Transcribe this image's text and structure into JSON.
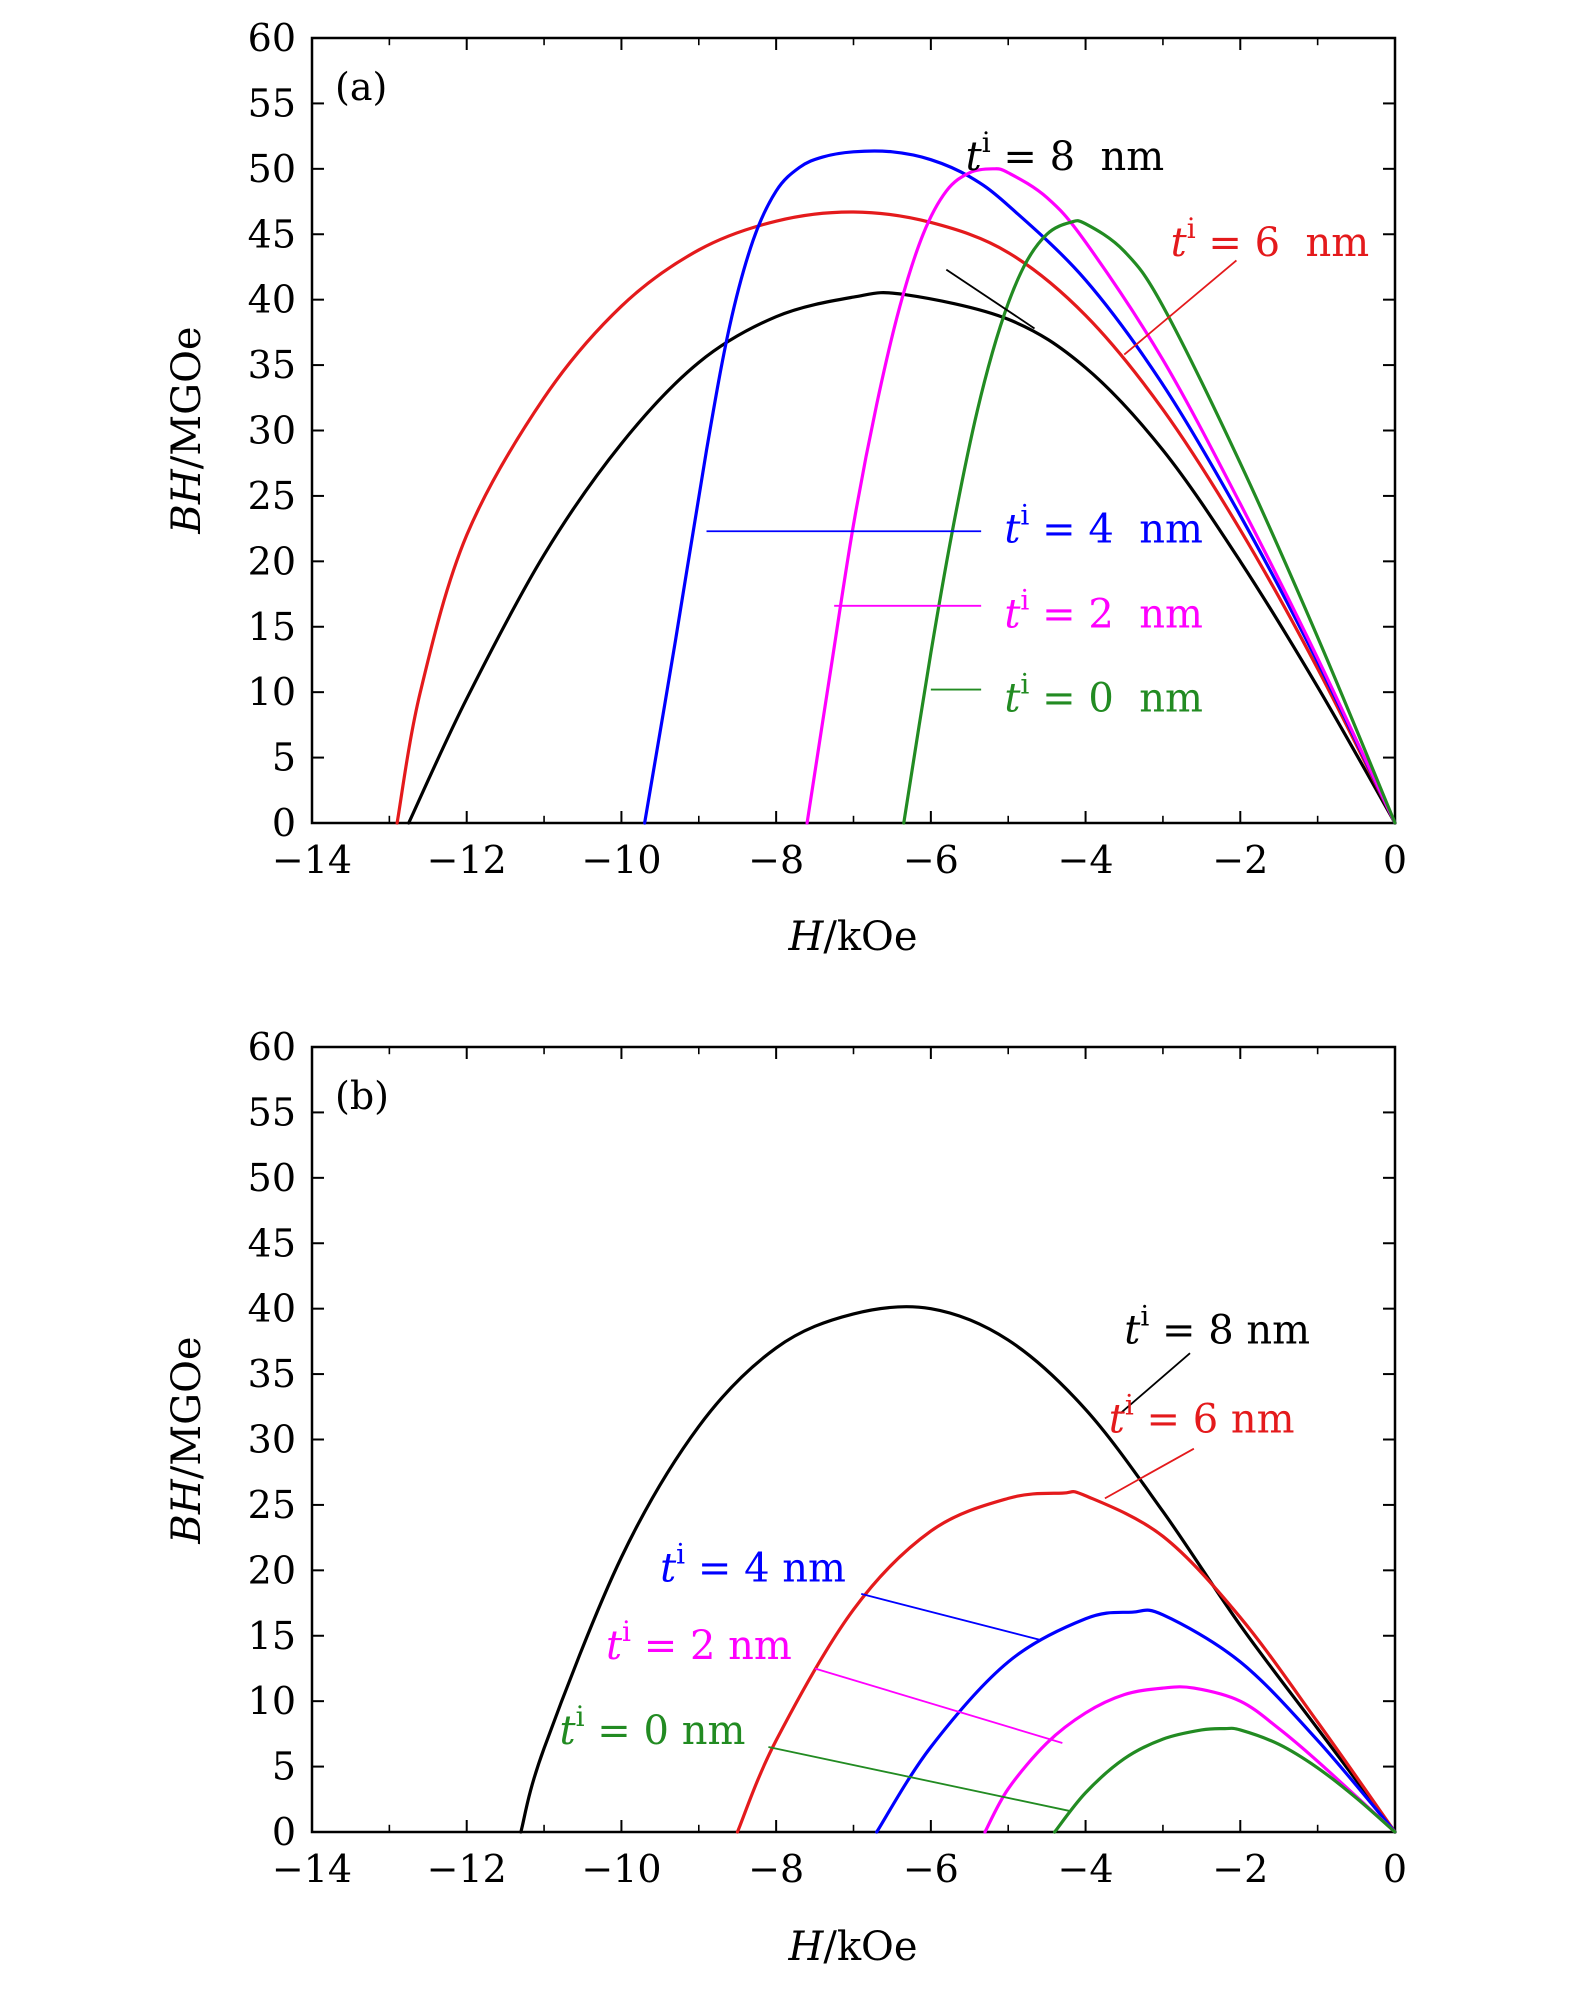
{
  "chart_data": [
    {
      "type": "line",
      "panel_label": "(a)",
      "xlabel": {
        "var": "H",
        "unit": "/kOe"
      },
      "ylabel": {
        "var": "BH",
        "unit": "/MGOe"
      },
      "xlim": [
        -14,
        0
      ],
      "ylim": [
        0,
        60
      ],
      "xticks": [
        -14,
        -12,
        -10,
        -8,
        -6,
        -4,
        -2,
        0
      ],
      "xtick_labels": [
        "−14",
        "−12",
        "−10",
        "−8",
        "−6",
        "−4",
        "−2",
        "0"
      ],
      "yticks": [
        0,
        5,
        10,
        15,
        20,
        25,
        30,
        35,
        40,
        45,
        50,
        55,
        60
      ],
      "ytick_labels": [
        "0",
        "5",
        "10",
        "15",
        "20",
        "25",
        "30",
        "35",
        "40",
        "45",
        "50",
        "55",
        "60"
      ],
      "grid": false,
      "series": [
        {
          "name": "t^i = 8 nm",
          "label_var": "t",
          "label_sup": "i",
          "label_rest": " = 8  nm",
          "color": "#000000",
          "x": [
            -12.75,
            -12.0,
            -11.0,
            -10.0,
            -9.0,
            -8.0,
            -7.0,
            -6.35,
            -5.0,
            -4.0,
            -3.0,
            -2.0,
            -1.0,
            0.0
          ],
          "y": [
            0,
            9.5,
            20.5,
            29.0,
            35.2,
            38.7,
            40.2,
            40.4,
            38.5,
            34.8,
            28.5,
            20.0,
            10.4,
            0
          ],
          "label_pos": [
            -5.55,
            51
          ],
          "pointer": [
            [
              -5.8,
              42.3
            ],
            [
              -4.66,
              37.8
            ]
          ]
        },
        {
          "name": "t^i = 6 nm",
          "label_var": "t",
          "label_sup": "i",
          "label_rest": " = 6  nm",
          "color": "#e41a1c",
          "x": [
            -12.9,
            -12.6,
            -12.0,
            -11.0,
            -10.0,
            -9.0,
            -8.0,
            -7.0,
            -6.0,
            -5.0,
            -4.0,
            -3.0,
            -2.0,
            -1.0,
            0.0
          ],
          "y": [
            0,
            10.0,
            22.0,
            32.5,
            39.5,
            43.8,
            46.0,
            46.7,
            45.9,
            43.6,
            38.8,
            31.6,
            22.4,
            11.8,
            0
          ],
          "label_pos": [
            -2.9,
            44.4
          ],
          "pointer": [
            [
              -3.5,
              35.8
            ],
            [
              -2.05,
              43.0
            ]
          ]
        },
        {
          "name": "t^i = 4 nm",
          "label_var": "t",
          "label_sup": "i",
          "label_rest": " = 4  nm",
          "color": "#0000ff",
          "x": [
            -9.7,
            -9.3,
            -8.9,
            -8.6,
            -8.3,
            -8.0,
            -7.7,
            -7.4,
            -7.0,
            -6.5,
            -6.0,
            -5.5,
            -5.0,
            -4.0,
            -3.0,
            -2.0,
            -1.0,
            0.0
          ],
          "y": [
            0,
            14.0,
            28.5,
            38.0,
            44.5,
            48.3,
            50.1,
            50.9,
            51.3,
            51.3,
            50.7,
            49.4,
            47.2,
            41.5,
            33.5,
            23.5,
            12.3,
            0
          ],
          "label_pos": [
            -5.05,
            22.5
          ],
          "pointer": [
            [
              -8.9,
              22.3
            ],
            [
              -5.35,
              22.3
            ]
          ]
        },
        {
          "name": "t^i = 2 nm",
          "label_var": "t",
          "label_sup": "i",
          "label_rest": " = 2  nm",
          "color": "#ff00ff",
          "x": [
            -7.6,
            -7.3,
            -7.0,
            -6.7,
            -6.4,
            -6.1,
            -5.8,
            -5.5,
            -5.2,
            -5.0,
            -4.5,
            -4.0,
            -3.0,
            -2.0,
            -1.0,
            0.0
          ],
          "y": [
            0,
            11.5,
            22.8,
            32.0,
            39.5,
            45.0,
            48.3,
            49.7,
            50.0,
            49.7,
            47.8,
            44.4,
            35.4,
            24.4,
            12.6,
            0
          ],
          "label_pos": [
            -5.05,
            16.0
          ],
          "pointer": [
            [
              -7.25,
              16.6
            ],
            [
              -5.35,
              16.6
            ]
          ]
        },
        {
          "name": "t^i = 0 nm",
          "label_var": "t",
          "label_sup": "i",
          "label_rest": " = 0  nm",
          "color": "#228b22",
          "x": [
            -6.35,
            -6.0,
            -5.7,
            -5.4,
            -5.1,
            -4.8,
            -4.5,
            -4.2,
            -4.0,
            -3.5,
            -3.0,
            -2.0,
            -1.0,
            0.0
          ],
          "y": [
            0,
            13.0,
            23.0,
            31.5,
            38.0,
            42.5,
            45.0,
            45.9,
            45.8,
            43.7,
            39.5,
            27.5,
            14.2,
            0
          ],
          "label_pos": [
            -5.05,
            9.6
          ],
          "pointer": [
            [
              -6.0,
              10.2
            ],
            [
              -5.35,
              10.2
            ]
          ]
        }
      ]
    },
    {
      "type": "line",
      "panel_label": "(b)",
      "xlabel": {
        "var": "H",
        "unit": "/kOe"
      },
      "ylabel": {
        "var": "BH",
        "unit": "/MGOe"
      },
      "xlim": [
        -14,
        0
      ],
      "ylim": [
        0,
        60
      ],
      "xticks": [
        -14,
        -12,
        -10,
        -8,
        -6,
        -4,
        -2,
        0
      ],
      "xtick_labels": [
        "−14",
        "−12",
        "−10",
        "−8",
        "−6",
        "−4",
        "−2",
        "0"
      ],
      "yticks": [
        0,
        5,
        10,
        15,
        20,
        25,
        30,
        35,
        40,
        45,
        50,
        55,
        60
      ],
      "ytick_labels": [
        "0",
        "5",
        "10",
        "15",
        "20",
        "25",
        "30",
        "35",
        "40",
        "45",
        "50",
        "55",
        "60"
      ],
      "grid": false,
      "series": [
        {
          "name": "t^i = 8 nm",
          "label_var": "t",
          "label_sup": "i",
          "label_rest": " = 8 nm",
          "color": "#000000",
          "x": [
            -11.3,
            -11.0,
            -10.0,
            -9.0,
            -8.0,
            -7.0,
            -6.0,
            -5.0,
            -4.0,
            -3.0,
            -2.0,
            -1.0,
            0.0
          ],
          "y": [
            0,
            6.4,
            21.0,
            31.0,
            37.0,
            39.6,
            40.0,
            37.6,
            32.3,
            24.5,
            15.8,
            7.9,
            0
          ],
          "label_pos": [
            -3.5,
            38.4
          ],
          "pointer": [
            [
              -2.65,
              36.6
            ],
            [
              -3.55,
              32.0
            ]
          ]
        },
        {
          "name": "t^i = 6 nm",
          "label_var": "t",
          "label_sup": "i",
          "label_rest": " = 6 nm",
          "color": "#e41a1c",
          "x": [
            -8.5,
            -8.0,
            -7.0,
            -6.0,
            -5.0,
            -4.3,
            -4.0,
            -3.0,
            -2.0,
            -1.0,
            0.0
          ],
          "y": [
            0,
            7.0,
            17.0,
            23.0,
            25.5,
            25.9,
            25.7,
            22.6,
            16.4,
            8.4,
            0
          ],
          "label_pos": [
            -3.7,
            31.6
          ],
          "pointer": [
            [
              -2.6,
              29.3
            ],
            [
              -3.75,
              25.5
            ]
          ]
        },
        {
          "name": "t^i = 4 nm",
          "label_var": "t",
          "label_sup": "i",
          "label_rest": " = 4 nm",
          "color": "#0000ff",
          "x": [
            -6.7,
            -6.0,
            -5.0,
            -4.0,
            -3.4,
            -3.0,
            -2.0,
            -1.0,
            0.0
          ],
          "y": [
            0,
            6.5,
            13.0,
            16.3,
            16.8,
            16.6,
            13.0,
            7.0,
            0
          ],
          "label_pos": [
            -9.5,
            20.2
          ],
          "pointer": [
            [
              -6.9,
              18.2
            ],
            [
              -4.6,
              14.7
            ]
          ]
        },
        {
          "name": "t^i = 2 nm",
          "label_var": "t",
          "label_sup": "i",
          "label_rest": " = 2 nm",
          "color": "#ff00ff",
          "x": [
            -5.3,
            -5.0,
            -4.5,
            -4.0,
            -3.5,
            -3.0,
            -2.6,
            -2.0,
            -1.5,
            -1.0,
            0.0
          ],
          "y": [
            0,
            3.3,
            6.8,
            9.1,
            10.5,
            11.0,
            11.0,
            10.0,
            7.9,
            5.4,
            0
          ],
          "label_pos": [
            -10.2,
            14.3
          ],
          "pointer": [
            [
              -7.5,
              12.5
            ],
            [
              -4.3,
              6.8
            ]
          ]
        },
        {
          "name": "t^i = 0 nm",
          "label_var": "t",
          "label_sup": "i",
          "label_rest": " = 0 nm",
          "color": "#228b22",
          "x": [
            -4.4,
            -4.0,
            -3.5,
            -3.0,
            -2.5,
            -2.2,
            -2.0,
            -1.5,
            -1.0,
            -0.5,
            0.0
          ],
          "y": [
            0,
            3.0,
            5.6,
            7.1,
            7.8,
            7.9,
            7.8,
            6.7,
            4.9,
            2.6,
            0
          ],
          "label_pos": [
            -10.8,
            7.8
          ],
          "pointer": [
            [
              -8.1,
              6.5
            ],
            [
              -4.2,
              1.6
            ]
          ]
        }
      ]
    }
  ]
}
